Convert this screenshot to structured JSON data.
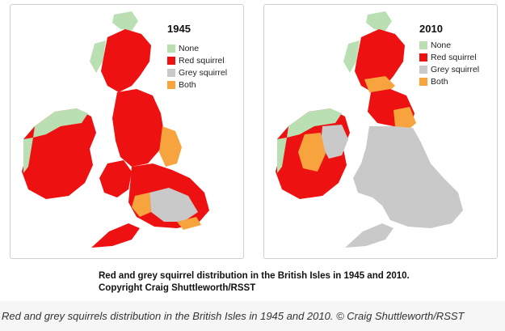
{
  "colors": {
    "none": "#b9dfb2",
    "red_squirrel": "#ee1111",
    "grey_squirrel": "#c9c9c9",
    "both": "#f7a43e"
  },
  "panels": [
    {
      "year": "1945",
      "legend": [
        "None",
        "Red squirrel",
        "Grey squirrel",
        "Both"
      ]
    },
    {
      "year": "2010",
      "legend": [
        "None",
        "Red squirrel",
        "Grey squirrel",
        "Both"
      ]
    }
  ],
  "figure_caption": {
    "line1": "Red and grey squirrel distribution in the British Isles in 1945 and 2010.",
    "line2": "Copyright Craig Shuttleworth/RSST"
  },
  "page_caption": "Red and grey squirrels distribution in the British Isles in 1945 and 2010. © Craig Shuttleworth/RSST"
}
